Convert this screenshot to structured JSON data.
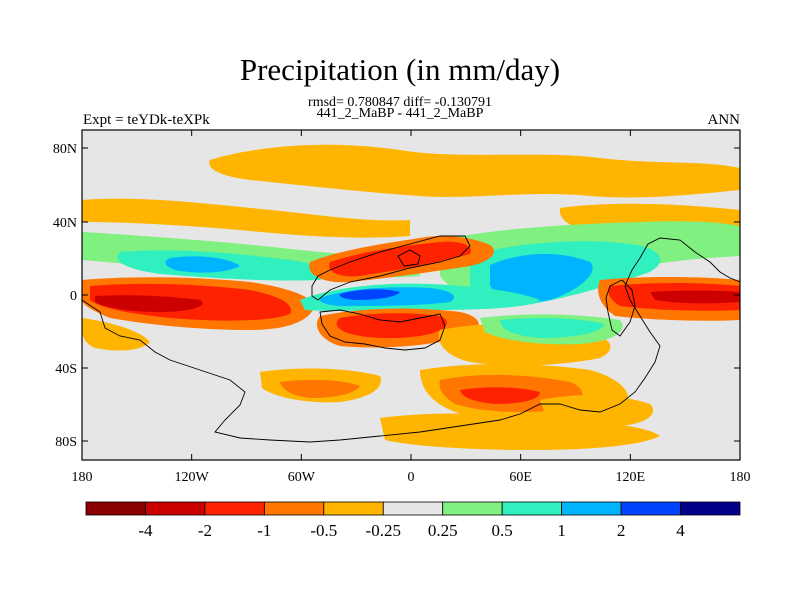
{
  "figure": {
    "title": "Precipitation (in mm/day)",
    "stats": "rmsd= 0.780847 diff= -0.130791",
    "runs": "441_2_MaBP - 441_2_MaBP",
    "left_label": "Expt = teYDk-teXPk",
    "right_label": "ANN"
  },
  "map": {
    "lat_ticks": [
      "80N",
      "40N",
      "0",
      "40S",
      "80S"
    ],
    "lon_ticks": [
      "180",
      "120W",
      "60W",
      "0",
      "60E",
      "120E",
      "180"
    ]
  },
  "colorbar": {
    "colors": [
      "#8b0000",
      "#cc0000",
      "#ff2200",
      "#ff7700",
      "#ffb400",
      "#e6e6e6",
      "#80f080",
      "#30f0c0",
      "#00b4ff",
      "#0044ff",
      "#00008b"
    ],
    "labels": [
      "-4",
      "-2",
      "-1",
      "-0.5",
      "-0.25",
      "0.25",
      "0.5",
      "1",
      "2",
      "4"
    ]
  },
  "colors": {
    "background": "#e6e6e6",
    "frame": "#000000"
  }
}
